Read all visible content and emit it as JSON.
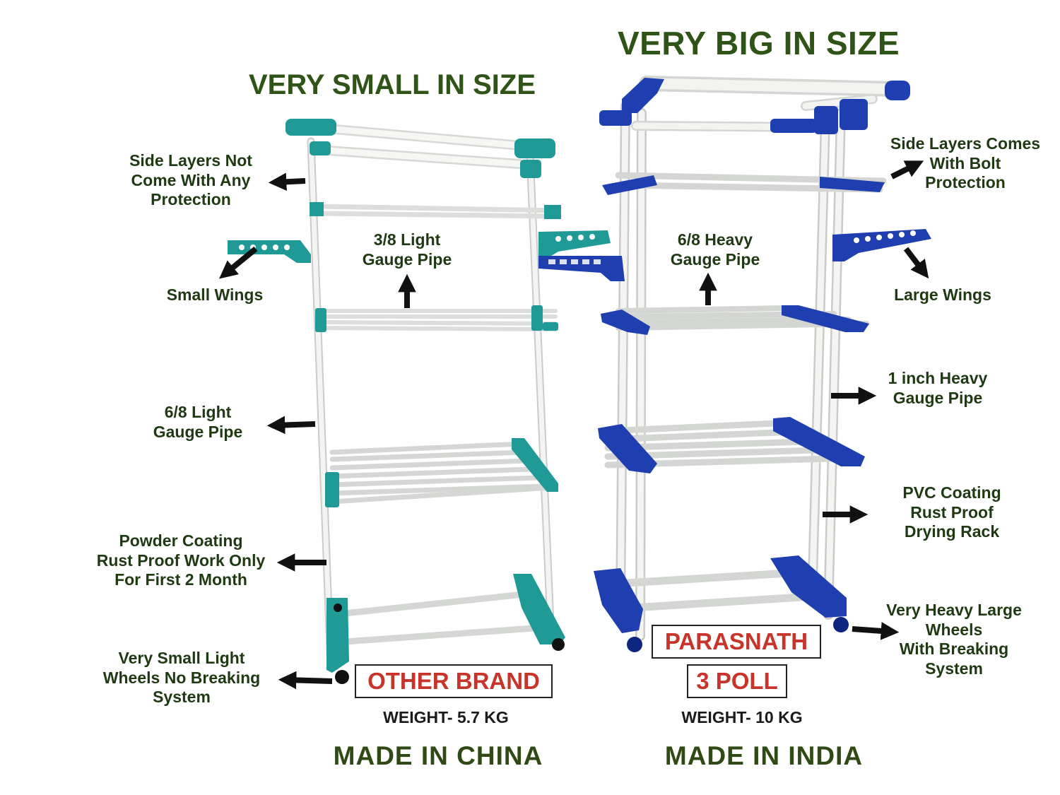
{
  "headings": {
    "left": "VERY SMALL IN SIZE",
    "right": "VERY BIG IN SIZE"
  },
  "left_labels": {
    "side_layers": [
      "Side Layers Not",
      "Come With Any",
      "Protection"
    ],
    "wings": "Small Wings",
    "middle_pipe": [
      "3/8 Light",
      "Gauge Pipe"
    ],
    "vertical_pipe": [
      "6/8 Light",
      "Gauge Pipe"
    ],
    "coating": [
      "Powder Coating",
      "Rust Proof Work Only",
      "For First 2 Month"
    ],
    "wheels": [
      "Very Small Light",
      "Wheels No Breaking",
      "System"
    ]
  },
  "right_labels": {
    "side_layers": [
      "Side Layers Comes",
      "With Bolt",
      "Protection"
    ],
    "wings": "Large Wings",
    "middle_pipe": [
      "6/8 Heavy",
      "Gauge Pipe"
    ],
    "vertical_pipe": [
      "1 inch Heavy",
      "Gauge Pipe"
    ],
    "coating": [
      "PVC Coating",
      "Rust Proof",
      "Drying Rack"
    ],
    "wheels": [
      "Very Heavy Large",
      "Wheels",
      "With Breaking",
      "System"
    ]
  },
  "left_brand": {
    "name": "OTHER BRAND",
    "weight": "WEIGHT- 5.7 KG",
    "origin": "MADE IN CHINA"
  },
  "right_brand": {
    "name": "PARASNATH",
    "model": "3 POLL",
    "weight": "WEIGHT- 10 KG",
    "origin": "MADE IN INDIA"
  },
  "colors": {
    "heading_green": "#2f5418",
    "label_text": "#1f3a12",
    "brand_red": "#c8342a",
    "left_rack_teal": "#1f9a96",
    "right_rack_blue": "#1f3fb0",
    "pipe_white": "#eef0ee"
  }
}
